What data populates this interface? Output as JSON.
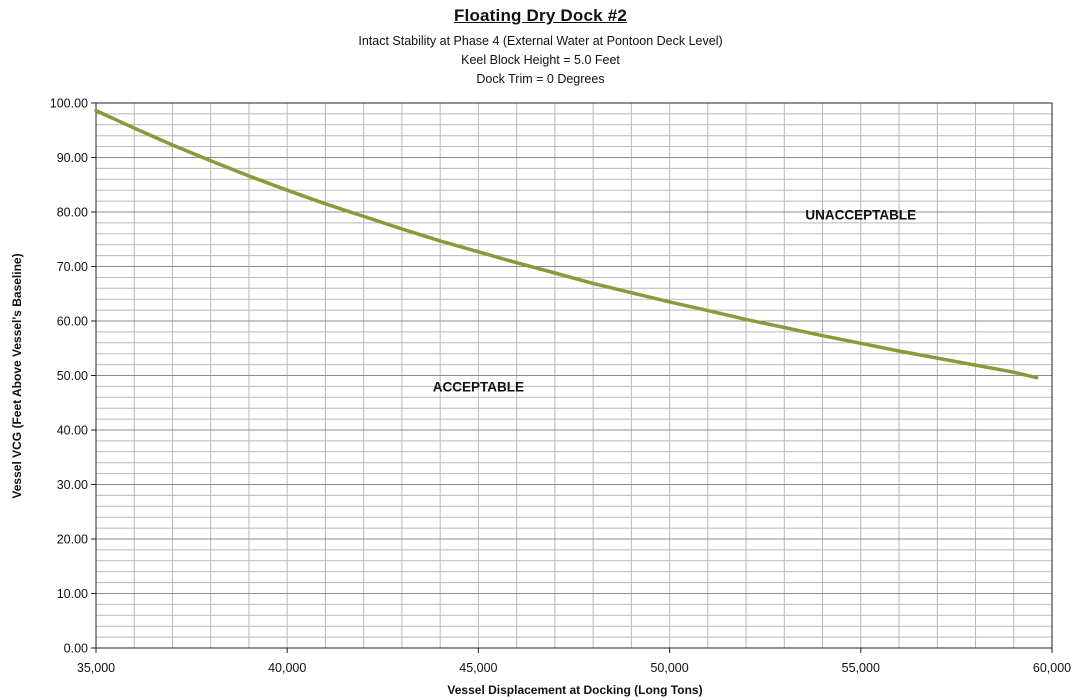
{
  "chart_data": {
    "type": "line",
    "title": "Floating Dry Dock #2",
    "subtitles": [
      "Intact Stability at Phase 4 (External Water at Pontoon Deck Level)",
      "Keel Block Height = 5.0 Feet",
      "Dock Trim = 0 Degrees"
    ],
    "xlabel": "Vessel Displacement at Docking (Long Tons)",
    "ylabel": "Vessel VCG (Feet Above Vessel's Baseline)",
    "xlim": [
      35000,
      60000
    ],
    "ylim": [
      0,
      100
    ],
    "x_ticks": [
      "35,000",
      "40,000",
      "45,000",
      "50,000",
      "55,000",
      "60,000"
    ],
    "y_ticks": [
      "0.00",
      "10.00",
      "20.00",
      "30.00",
      "40.00",
      "50.00",
      "60.00",
      "70.00",
      "80.00",
      "90.00",
      "100.00"
    ],
    "grid": true,
    "series": [
      {
        "color": "#8a9a3a",
        "x": [
          35000,
          36000,
          37000,
          38000,
          39000,
          40000,
          41000,
          42000,
          43000,
          44000,
          45000,
          46000,
          47000,
          48000,
          49000,
          50000,
          51000,
          52000,
          53000,
          54000,
          55000,
          56000,
          57000,
          58000,
          59000,
          59600
        ],
        "y": [
          98.6,
          95.4,
          92.3,
          89.4,
          86.6,
          84.0,
          81.5,
          79.2,
          76.9,
          74.7,
          72.7,
          70.7,
          68.8,
          66.9,
          65.2,
          63.5,
          61.9,
          60.3,
          58.8,
          57.3,
          55.9,
          54.5,
          53.2,
          51.9,
          50.6,
          49.6
        ]
      }
    ],
    "annotations": [
      {
        "text": "UNACCEPTABLE",
        "x": 55000,
        "y": 79.5
      },
      {
        "text": "ACCEPTABLE",
        "x": 45000,
        "y": 48.0
      }
    ]
  }
}
